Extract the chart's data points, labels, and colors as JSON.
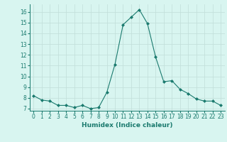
{
  "x": [
    0,
    1,
    2,
    3,
    4,
    5,
    6,
    7,
    8,
    9,
    10,
    11,
    12,
    13,
    14,
    15,
    16,
    17,
    18,
    19,
    20,
    21,
    22,
    23
  ],
  "y": [
    8.2,
    7.8,
    7.7,
    7.3,
    7.3,
    7.1,
    7.3,
    7.0,
    7.1,
    8.5,
    11.1,
    14.8,
    15.5,
    16.2,
    14.9,
    11.8,
    9.5,
    9.6,
    8.8,
    8.4,
    7.9,
    7.7,
    7.7,
    7.3
  ],
  "xlabel": "Humidex (Indice chaleur)",
  "ylim": [
    6.8,
    16.7
  ],
  "xlim": [
    -0.5,
    23.5
  ],
  "yticks": [
    7,
    8,
    9,
    10,
    11,
    12,
    13,
    14,
    15,
    16
  ],
  "xticks": [
    0,
    1,
    2,
    3,
    4,
    5,
    6,
    7,
    8,
    9,
    10,
    11,
    12,
    13,
    14,
    15,
    16,
    17,
    18,
    19,
    20,
    21,
    22,
    23
  ],
  "line_color": "#1a7a6e",
  "marker_color": "#1a7a6e",
  "bg_color": "#d8f5f0",
  "grid_color": "#c0ddd8",
  "tick_label_fontsize": 5.5,
  "xlabel_fontsize": 6.5
}
